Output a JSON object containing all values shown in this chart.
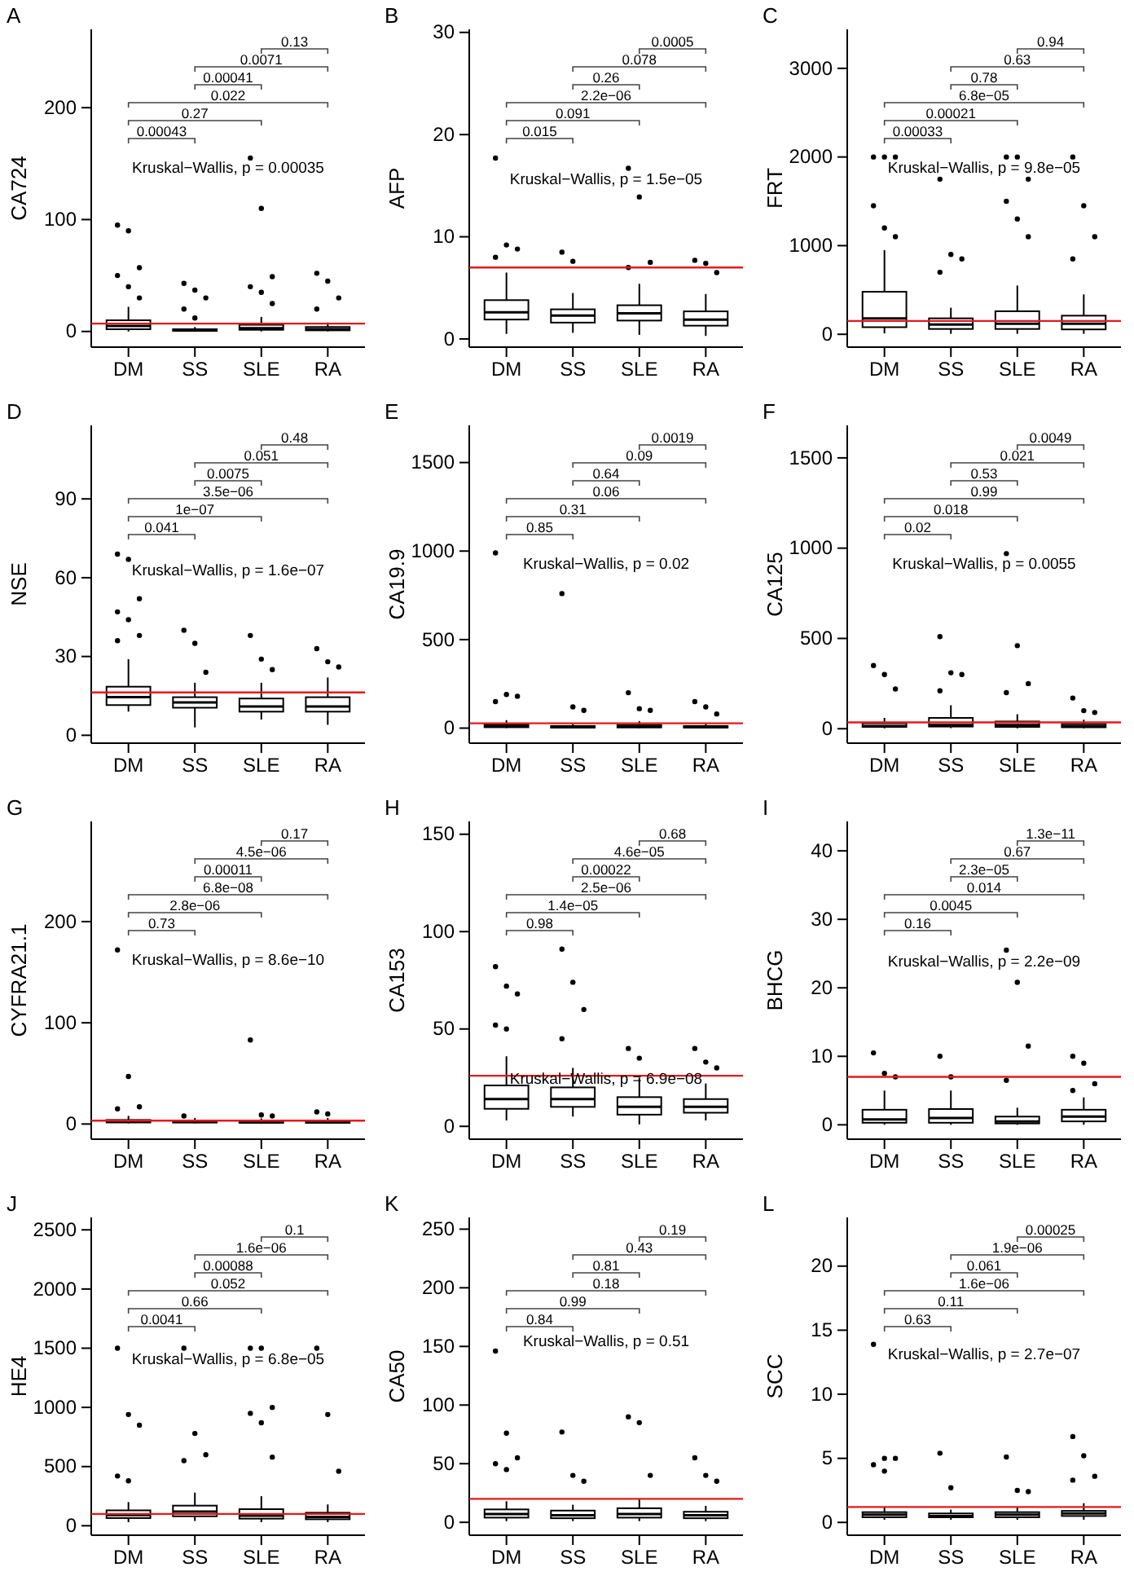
{
  "chart_data": [
    {
      "type": "box",
      "title": "A",
      "ylabel": "CA724",
      "categories": [
        "DM",
        "SS",
        "SLE",
        "RA"
      ],
      "ylim": [
        -14,
        270
      ],
      "yticks": [
        0,
        100,
        200
      ],
      "boxes": [
        {
          "low": 0,
          "q1": 2,
          "median": 5,
          "q3": 10,
          "high": 22,
          "outliers": [
            95,
            90,
            57,
            50,
            40,
            30
          ]
        },
        {
          "low": 0,
          "q1": 0.5,
          "median": 1,
          "q3": 2,
          "high": 4,
          "outliers": [
            43,
            37,
            30,
            20,
            12
          ]
        },
        {
          "low": 0,
          "q1": 1.5,
          "median": 3,
          "q3": 6,
          "high": 13,
          "outliers": [
            155,
            110,
            49,
            40,
            35,
            25
          ]
        },
        {
          "low": 0,
          "q1": 1,
          "median": 2,
          "q3": 4,
          "high": 8,
          "outliers": [
            52,
            45,
            30,
            20
          ]
        }
      ],
      "ref_lines": [
        {
          "axis": "y",
          "value": 7,
          "color": "#e41a1c"
        }
      ],
      "annotations": [
        "0.00043",
        "0.27",
        "0.022",
        "0.00041",
        "0.0071",
        "0.13",
        "Kruskal−Wallis, p = 0.00035"
      ]
    },
    {
      "type": "box",
      "title": "B",
      "ylabel": "AFP",
      "categories": [
        "DM",
        "SS",
        "SLE",
        "RA"
      ],
      "ylim": [
        -0.8,
        30.3
      ],
      "yticks": [
        0,
        10,
        20,
        30
      ],
      "boxes": [
        {
          "low": 0.5,
          "q1": 1.9,
          "median": 2.6,
          "q3": 3.8,
          "high": 6.5,
          "outliers": [
            17.7,
            9.2,
            8.8,
            8
          ]
        },
        {
          "low": 0.6,
          "q1": 1.6,
          "median": 2.3,
          "q3": 2.9,
          "high": 4.5,
          "outliers": [
            8.5,
            7.6
          ]
        },
        {
          "low": 0.4,
          "q1": 1.8,
          "median": 2.5,
          "q3": 3.3,
          "high": 5.4,
          "outliers": [
            16.7,
            13.9,
            7.5,
            7
          ]
        },
        {
          "low": 0.3,
          "q1": 1.3,
          "median": 1.9,
          "q3": 2.7,
          "high": 4.4,
          "outliers": [
            7.7,
            7.4,
            6.5
          ]
        }
      ],
      "ref_lines": [
        {
          "axis": "y",
          "value": 7,
          "color": "#e41a1c"
        }
      ],
      "annotations": [
        "0.015",
        "0.091",
        "2.2e−06",
        "0.26",
        "0.078",
        "0.0005",
        "Kruskal−Wallis, p = 1.5e−05"
      ]
    },
    {
      "type": "box",
      "title": "C",
      "ylabel": "FRT",
      "categories": [
        "DM",
        "SS",
        "SLE",
        "RA"
      ],
      "ylim": [
        -145,
        3440
      ],
      "yticks": [
        0,
        1000,
        2000,
        3000
      ],
      "boxes": [
        {
          "low": 10,
          "q1": 80,
          "median": 180,
          "q3": 480,
          "high": 950,
          "outliers": [
            2000,
            2000,
            2000,
            1450,
            1200,
            1100
          ]
        },
        {
          "low": 5,
          "q1": 60,
          "median": 110,
          "q3": 180,
          "high": 300,
          "outliers": [
            1750,
            900,
            850,
            700
          ]
        },
        {
          "low": 5,
          "q1": 60,
          "median": 120,
          "q3": 260,
          "high": 550,
          "outliers": [
            2000,
            2000,
            1750,
            1500,
            1300,
            1100
          ]
        },
        {
          "low": 5,
          "q1": 55,
          "median": 120,
          "q3": 210,
          "high": 450,
          "outliers": [
            2000,
            1450,
            1100,
            850
          ]
        }
      ],
      "ref_lines": [
        {
          "axis": "y",
          "value": 150,
          "color": "#e41a1c"
        }
      ],
      "annotations": [
        "0.00033",
        "0.00021",
        "6.8e−05",
        "0.78",
        "0.63",
        "0.94",
        "Kruskal−Wallis, p = 9.8e−05"
      ]
    },
    {
      "type": "box",
      "title": "D",
      "ylabel": "NSE",
      "categories": [
        "DM",
        "SS",
        "SLE",
        "RA"
      ],
      "ylim": [
        -3,
        118
      ],
      "yticks": [
        0,
        30,
        60,
        90
      ],
      "boxes": [
        {
          "low": 9,
          "q1": 11.5,
          "median": 14.5,
          "q3": 18.5,
          "high": 29,
          "outliers": [
            69,
            67,
            52,
            47,
            44,
            38,
            36
          ]
        },
        {
          "low": 3,
          "q1": 10.5,
          "median": 12.5,
          "q3": 14.5,
          "high": 20,
          "outliers": [
            40,
            35,
            24
          ]
        },
        {
          "low": 6,
          "q1": 9,
          "median": 11,
          "q3": 14,
          "high": 20,
          "outliers": [
            38,
            29,
            25
          ]
        },
        {
          "low": 4,
          "q1": 9,
          "median": 11,
          "q3": 14.5,
          "high": 22,
          "outliers": [
            33,
            28,
            26
          ]
        }
      ],
      "ref_lines": [
        {
          "axis": "y",
          "value": 16.3,
          "color": "#e41a1c"
        }
      ],
      "annotations": [
        "0.041",
        "1e−07",
        "3.5e−06",
        "0.0075",
        "0.051",
        "0.48",
        "Kruskal−Wallis, p = 1.6e−07"
      ]
    },
    {
      "type": "box",
      "title": "E",
      "ylabel": "CA19.9",
      "categories": [
        "DM",
        "SS",
        "SLE",
        "RA"
      ],
      "ylim": [
        -85,
        1710
      ],
      "yticks": [
        0,
        500,
        1000,
        1500
      ],
      "boxes": [
        {
          "low": 0,
          "q1": 5,
          "median": 10,
          "q3": 20,
          "high": 45,
          "outliers": [
            990,
            190,
            180,
            150
          ]
        },
        {
          "low": 0,
          "q1": 3,
          "median": 6,
          "q3": 12,
          "high": 25,
          "outliers": [
            760,
            120,
            100
          ]
        },
        {
          "low": 0,
          "q1": 4,
          "median": 8,
          "q3": 18,
          "high": 40,
          "outliers": [
            200,
            110,
            100
          ]
        },
        {
          "low": 0,
          "q1": 3,
          "median": 6,
          "q3": 12,
          "high": 25,
          "outliers": [
            150,
            120,
            80
          ]
        }
      ],
      "ref_lines": [
        {
          "axis": "y",
          "value": 27,
          "color": "#e41a1c"
        }
      ],
      "annotations": [
        "0.85",
        "0.31",
        "0.06",
        "0.64",
        "0.09",
        "0.0019",
        "Kruskal−Wallis, p = 0.02"
      ]
    },
    {
      "type": "box",
      "title": "F",
      "ylabel": "CA125",
      "categories": [
        "DM",
        "SS",
        "SLE",
        "RA"
      ],
      "ylim": [
        -80,
        1680
      ],
      "yticks": [
        0,
        500,
        1000,
        1500
      ],
      "boxes": [
        {
          "low": 2,
          "q1": 10,
          "median": 15,
          "q3": 30,
          "high": 60,
          "outliers": [
            350,
            300,
            220
          ]
        },
        {
          "low": 3,
          "q1": 12,
          "median": 20,
          "q3": 60,
          "high": 130,
          "outliers": [
            510,
            310,
            300,
            210
          ]
        },
        {
          "low": 2,
          "q1": 10,
          "median": 20,
          "q3": 40,
          "high": 80,
          "outliers": [
            970,
            460,
            250,
            200
          ]
        },
        {
          "low": 2,
          "q1": 8,
          "median": 12,
          "q3": 25,
          "high": 50,
          "outliers": [
            170,
            100,
            90
          ]
        }
      ],
      "ref_lines": [
        {
          "axis": "y",
          "value": 35,
          "color": "#e41a1c"
        }
      ],
      "annotations": [
        "0.02",
        "0.018",
        "0.99",
        "0.53",
        "0.021",
        "0.0049",
        "Kruskal−Wallis, p = 0.0055"
      ]
    },
    {
      "type": "box",
      "title": "G",
      "ylabel": "CYFRA21.1",
      "categories": [
        "DM",
        "SS",
        "SLE",
        "RA"
      ],
      "ylim": [
        -15,
        299
      ],
      "yticks": [
        0,
        100,
        200
      ],
      "boxes": [
        {
          "low": 0.5,
          "q1": 1.5,
          "median": 2.5,
          "q3": 4,
          "high": 8,
          "outliers": [
            172,
            47,
            17,
            15
          ]
        },
        {
          "low": 0.5,
          "q1": 1.5,
          "median": 2.2,
          "q3": 3.5,
          "high": 6,
          "outliers": [
            8
          ]
        },
        {
          "low": 0.5,
          "q1": 1.2,
          "median": 2,
          "q3": 3,
          "high": 5.5,
          "outliers": [
            83,
            9,
            8
          ]
        },
        {
          "low": 0.5,
          "q1": 1.2,
          "median": 2,
          "q3": 3.2,
          "high": 6,
          "outliers": [
            12,
            10
          ]
        }
      ],
      "ref_lines": [
        {
          "axis": "y",
          "value": 3.3,
          "color": "#e41a1c"
        }
      ],
      "annotations": [
        "0.73",
        "2.8e−06",
        "6.8e−08",
        "0.00011",
        "4.5e−06",
        "0.17",
        "Kruskal−Wallis, p = 8.6e−10"
      ]
    },
    {
      "type": "box",
      "title": "H",
      "ylabel": "CA153",
      "categories": [
        "DM",
        "SS",
        "SLE",
        "RA"
      ],
      "ylim": [
        -6.6,
        156.6
      ],
      "yticks": [
        0,
        50,
        100,
        150
      ],
      "boxes": [
        {
          "low": 3,
          "q1": 9,
          "median": 14,
          "q3": 21,
          "high": 36,
          "outliers": [
            82,
            72,
            68,
            52,
            50
          ]
        },
        {
          "low": 5,
          "q1": 10,
          "median": 14,
          "q3": 20,
          "high": 30,
          "outliers": [
            91,
            74,
            60,
            45
          ]
        },
        {
          "low": 1,
          "q1": 6,
          "median": 10,
          "q3": 15,
          "high": 25,
          "outliers": [
            40,
            35
          ]
        },
        {
          "low": 3,
          "q1": 7,
          "median": 10,
          "q3": 14,
          "high": 22,
          "outliers": [
            40,
            33,
            30
          ]
        }
      ],
      "ref_lines": [
        {
          "axis": "y",
          "value": 26,
          "color": "#e41a1c"
        }
      ],
      "annotations": [
        "0.98",
        "1.4e−05",
        "2.5e−06",
        "0.00022",
        "4.6e−05",
        "0.68",
        "Kruskal−Wallis, p = 6.9e−08"
      ]
    },
    {
      "type": "box",
      "title": "I",
      "ylabel": "BHCG",
      "categories": [
        "DM",
        "SS",
        "SLE",
        "RA"
      ],
      "ylim": [
        -2.1,
        44.3
      ],
      "yticks": [
        0,
        10,
        20,
        30,
        40
      ],
      "boxes": [
        {
          "low": 0,
          "q1": 0.3,
          "median": 0.8,
          "q3": 2.2,
          "high": 5,
          "outliers": [
            10.5,
            7.5,
            7
          ]
        },
        {
          "low": 0,
          "q1": 0.3,
          "median": 1,
          "q3": 2.3,
          "high": 5,
          "outliers": [
            10,
            7
          ]
        },
        {
          "low": 0,
          "q1": 0.2,
          "median": 0.5,
          "q3": 1.2,
          "high": 2.5,
          "outliers": [
            25.5,
            20.8,
            11.5,
            6.5
          ]
        },
        {
          "low": 0,
          "q1": 0.5,
          "median": 1.2,
          "q3": 2.2,
          "high": 4,
          "outliers": [
            10,
            9,
            6,
            5
          ]
        }
      ],
      "ref_lines": [
        {
          "axis": "y",
          "value": 7,
          "color": "#e41a1c"
        }
      ],
      "annotations": [
        "0.16",
        "0.0045",
        "0.014",
        "2.3e−05",
        "0.67",
        "1.3e−11",
        "Kruskal−Wallis, p = 2.2e−09"
      ]
    },
    {
      "type": "box",
      "title": "J",
      "ylabel": "HE4",
      "categories": [
        "DM",
        "SS",
        "SLE",
        "RA"
      ],
      "ylim": [
        -80,
        2605
      ],
      "yticks": [
        0,
        500,
        1000,
        1500,
        2000,
        2500
      ],
      "boxes": [
        {
          "low": 30,
          "q1": 65,
          "median": 90,
          "q3": 130,
          "high": 200,
          "outliers": [
            1500,
            940,
            850,
            420,
            380
          ]
        },
        {
          "low": 40,
          "q1": 80,
          "median": 120,
          "q3": 170,
          "high": 280,
          "outliers": [
            1500,
            780,
            600,
            550
          ]
        },
        {
          "low": 30,
          "q1": 60,
          "median": 85,
          "q3": 140,
          "high": 250,
          "outliers": [
            1500,
            1500,
            1000,
            950,
            870,
            580
          ]
        },
        {
          "low": 30,
          "q1": 55,
          "median": 75,
          "q3": 110,
          "high": 180,
          "outliers": [
            1500,
            940,
            460
          ]
        }
      ],
      "ref_lines": [
        {
          "axis": "y",
          "value": 100,
          "color": "#e41a1c"
        }
      ],
      "annotations": [
        "0.0041",
        "0.66",
        "0.052",
        "0.00088",
        "1.6e−06",
        "0.1",
        "Kruskal−Wallis, p = 6.8e−05"
      ]
    },
    {
      "type": "box",
      "title": "K",
      "ylabel": "CA50",
      "categories": [
        "DM",
        "SS",
        "SLE",
        "RA"
      ],
      "ylim": [
        -11,
        260
      ],
      "yticks": [
        0,
        50,
        100,
        150,
        200,
        250
      ],
      "boxes": [
        {
          "low": 1,
          "q1": 4,
          "median": 7,
          "q3": 11,
          "high": 18,
          "outliers": [
            146,
            76,
            55,
            50,
            45
          ]
        },
        {
          "low": 1,
          "q1": 3.5,
          "median": 6,
          "q3": 10,
          "high": 15,
          "outliers": [
            77,
            40,
            35
          ]
        },
        {
          "low": 1,
          "q1": 4,
          "median": 7,
          "q3": 12,
          "high": 20,
          "outliers": [
            90,
            85,
            40
          ]
        },
        {
          "low": 1,
          "q1": 3.5,
          "median": 6,
          "q3": 9,
          "high": 14,
          "outliers": [
            55,
            40,
            35
          ]
        }
      ],
      "ref_lines": [
        {
          "axis": "y",
          "value": 20,
          "color": "#e41a1c"
        }
      ],
      "annotations": [
        "0.84",
        "0.99",
        "0.18",
        "0.81",
        "0.43",
        "0.19",
        "Kruskal−Wallis, p = 0.51"
      ]
    },
    {
      "type": "box",
      "title": "L",
      "ylabel": "SCC",
      "categories": [
        "DM",
        "SS",
        "SLE",
        "RA"
      ],
      "ylim": [
        -1,
        23.8
      ],
      "yticks": [
        0,
        5,
        10,
        15,
        20
      ],
      "boxes": [
        {
          "low": 0.2,
          "q1": 0.4,
          "median": 0.6,
          "q3": 0.8,
          "high": 1.2,
          "outliers": [
            13.9,
            5,
            5,
            4.5,
            4
          ]
        },
        {
          "low": 0.2,
          "q1": 0.4,
          "median": 0.5,
          "q3": 0.7,
          "high": 1,
          "outliers": [
            5.4,
            2.7
          ]
        },
        {
          "low": 0.2,
          "q1": 0.4,
          "median": 0.6,
          "q3": 0.8,
          "high": 1.2,
          "outliers": [
            5.1,
            2.5,
            2.4
          ]
        },
        {
          "low": 0.2,
          "q1": 0.5,
          "median": 0.7,
          "q3": 0.9,
          "high": 1.5,
          "outliers": [
            6.7,
            5.2,
            3.6,
            3.3
          ]
        }
      ],
      "ref_lines": [
        {
          "axis": "y",
          "value": 1.2,
          "color": "#e41a1c"
        }
      ],
      "annotations": [
        "0.63",
        "0.11",
        "1.6e−06",
        "0.061",
        "1.9e−06",
        "0.00025",
        "Kruskal−Wallis, p = 2.7e−07"
      ]
    }
  ]
}
